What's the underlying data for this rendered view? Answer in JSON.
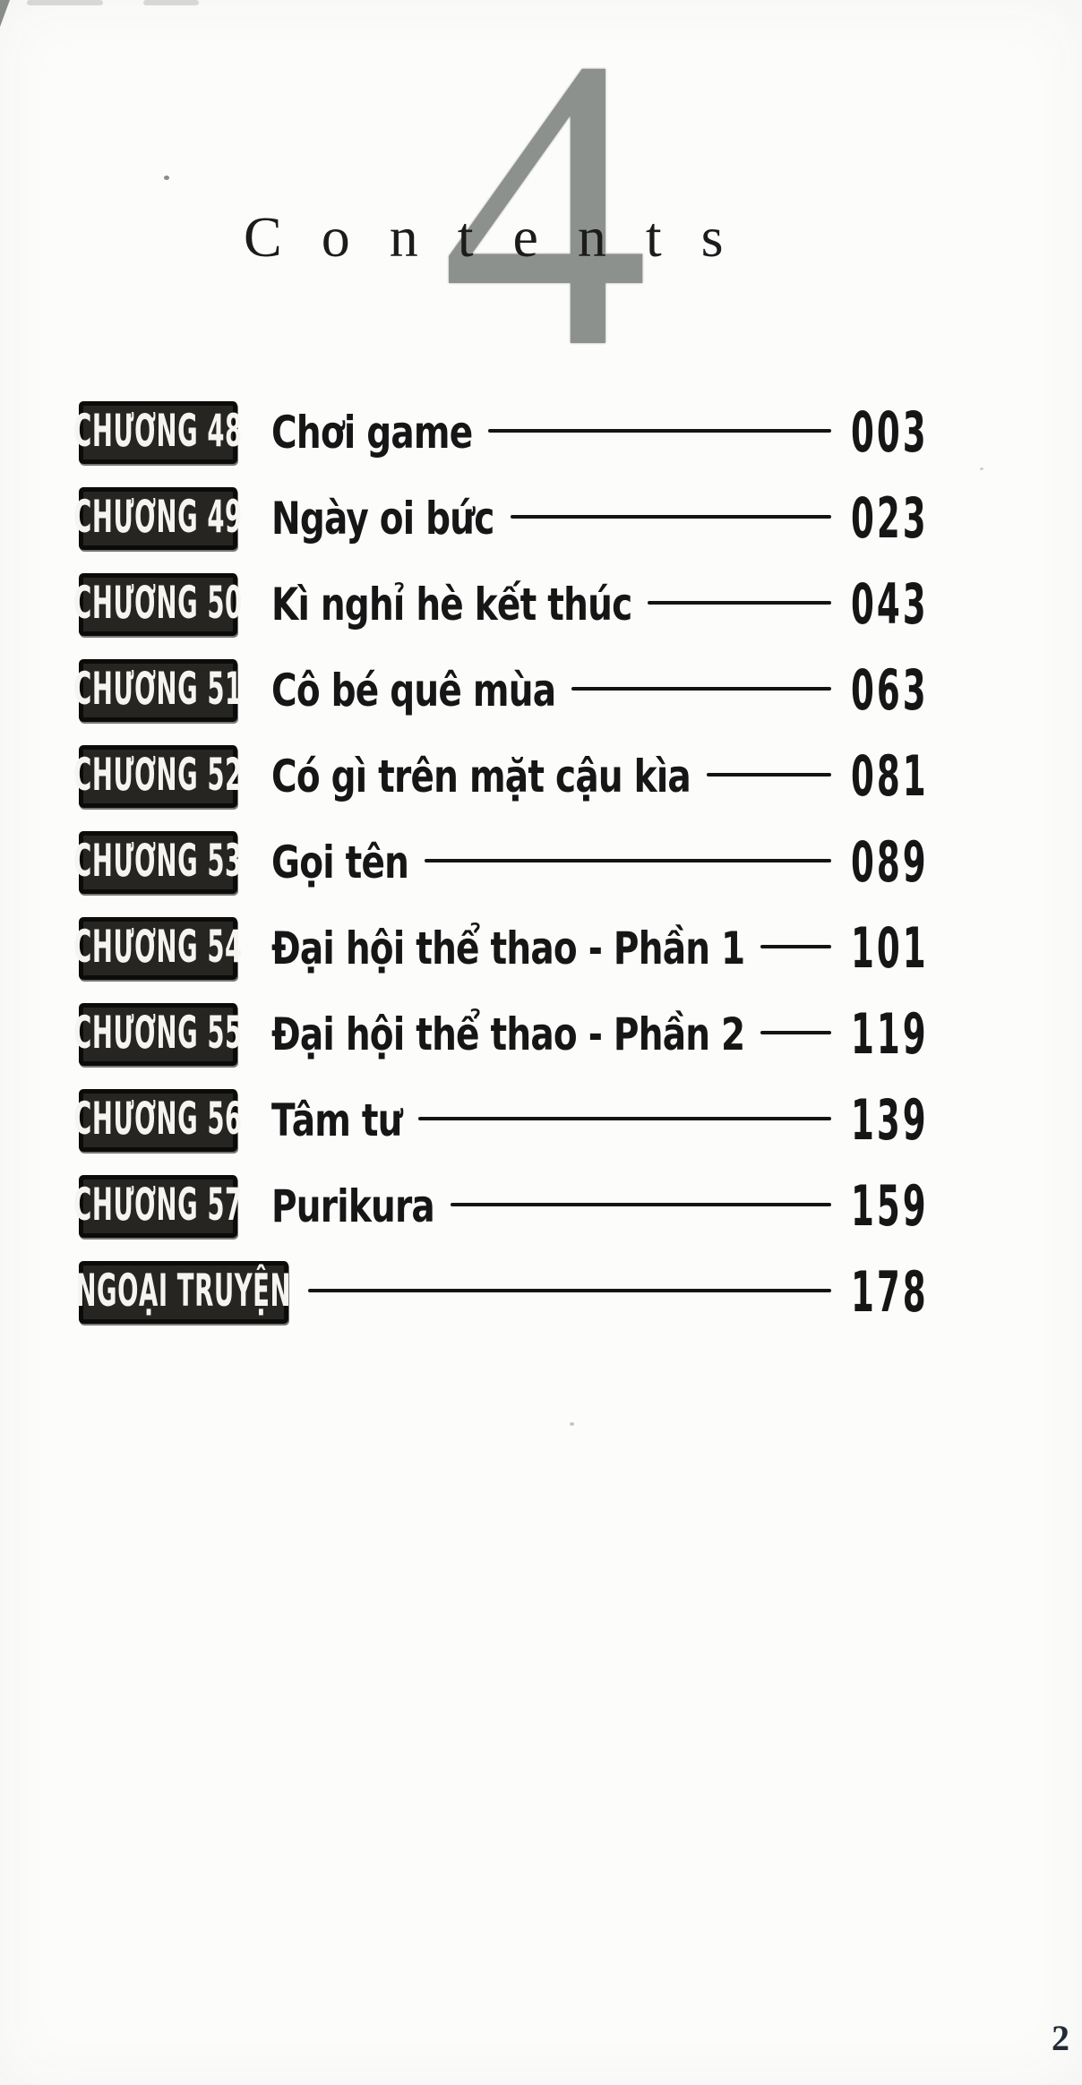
{
  "page": {
    "volume_number": "4",
    "header_title": "Contents",
    "corner_page_number": "2"
  },
  "toc": {
    "items": [
      {
        "label": "CHƯƠNG 48",
        "title": "Chơi game",
        "page": "003"
      },
      {
        "label": "CHƯƠNG 49",
        "title": "Ngày oi bức",
        "page": "023"
      },
      {
        "label": "CHƯƠNG 50",
        "title": "Kì nghỉ hè kết thúc",
        "page": "043"
      },
      {
        "label": "CHƯƠNG 51",
        "title": "Cô bé quê mùa",
        "page": "063"
      },
      {
        "label": "CHƯƠNG 52",
        "title": "Có gì trên mặt cậu kìa",
        "page": "081"
      },
      {
        "label": "CHƯƠNG 53",
        "title": "Gọi tên",
        "page": "089"
      },
      {
        "label": "CHƯƠNG 54",
        "title": "Đại hội thể thao - Phần 1",
        "page": "101"
      },
      {
        "label": "CHƯƠNG 55",
        "title": "Đại hội thể thao - Phần 2",
        "page": "119"
      },
      {
        "label": "CHƯƠNG 56",
        "title": "Tâm tư",
        "page": "139"
      },
      {
        "label": "CHƯƠNG 57",
        "title": "Purikura",
        "page": "159"
      },
      {
        "label": "NGOẠI TRUYỆN",
        "title": "",
        "page": "178"
      }
    ]
  },
  "colors": {
    "page_bg": "#fcfcfb",
    "text": "#161616",
    "big_numeral": "#8d918e",
    "chapter_box_bg": "#262522",
    "chapter_box_border": "#0b0b0a",
    "chapter_box_text": "#f5f4f0"
  }
}
